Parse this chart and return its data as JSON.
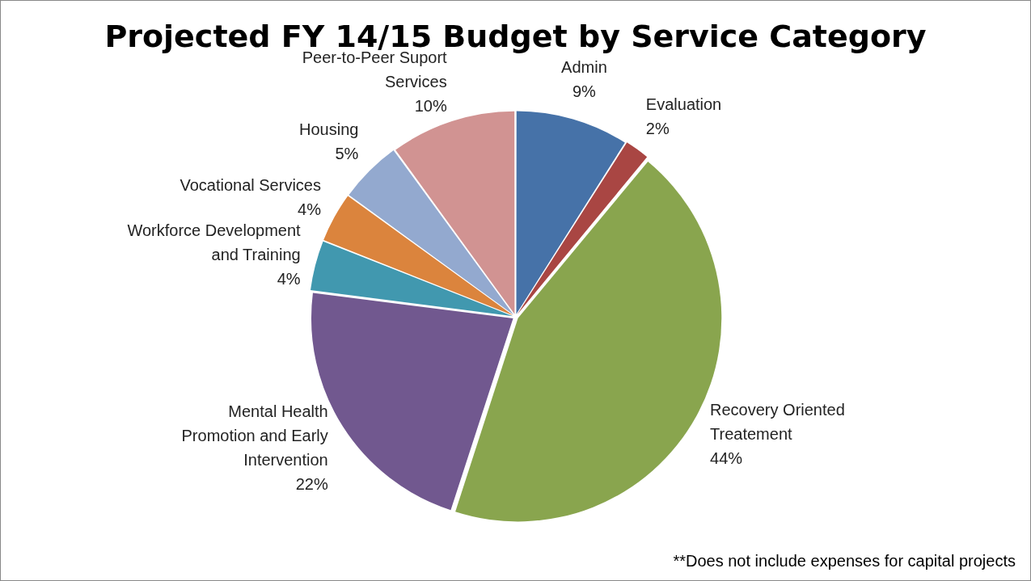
{
  "chart_data": {
    "type": "pie",
    "title": "Projected FY 14/15 Budget by Service Category",
    "categories": [
      "Admin",
      "Evaluation",
      "Recovery Oriented Treatement",
      "Mental Health Promotion and Early Intervention",
      "Workforce Development and Training",
      "Vocational Services",
      "Housing",
      "Peer-to-Peer Suport Services"
    ],
    "values": [
      9,
      2,
      44,
      22,
      4,
      4,
      5,
      10
    ],
    "colors": [
      "#4672a8",
      "#a94643",
      "#89a54e",
      "#71588f",
      "#4198af",
      "#db843d",
      "#93a9cf",
      "#d19392"
    ],
    "value_labels": [
      "9%",
      "2%",
      "44%",
      "22%",
      "4%",
      "4%",
      "5%",
      "10%"
    ],
    "annotations": [
      "**Does not include expenses for capital projects"
    ]
  }
}
